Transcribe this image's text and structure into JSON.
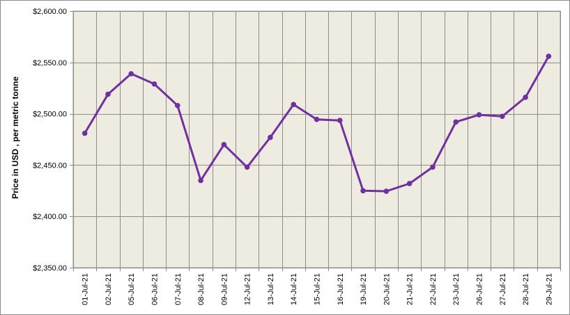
{
  "chart_data": {
    "type": "line",
    "title": "",
    "xlabel": "",
    "ylabel": "Price in USD , per metric tonne",
    "ylim": [
      2350,
      2600
    ],
    "y_ticks": [
      "$2,350.00",
      "$2,400.00",
      "$2,450.00",
      "$2,500.00",
      "$2,550.00",
      "$2,600.00"
    ],
    "y_tick_values": [
      2350,
      2400,
      2450,
      2500,
      2550,
      2600
    ],
    "grid": true,
    "legend": "none",
    "categories": [
      "01-Jul-21",
      "02-Jul-21",
      "05-Jul-21",
      "06-Jul-21",
      "07-Jul-21",
      "08-Jul-21",
      "09-Jul-21",
      "12-Jul-21",
      "13-Jul-21",
      "14-Jul-21",
      "15-Jul-21",
      "16-Jul-21",
      "19-Jul-21",
      "20-Jul-21",
      "21-Jul-21",
      "22-Jul-21",
      "23-Jul-21",
      "26-Jul-21",
      "27-Jul-21",
      "28-Jul-21",
      "29-Jul-21"
    ],
    "series": [
      {
        "values": [
          2481,
          2519,
          2539,
          2529,
          2508,
          2435,
          2470,
          2448,
          2477,
          2509,
          2494.5,
          2493.5,
          2425,
          2424.5,
          2432,
          2448,
          2492,
          2499,
          2497.5,
          2516,
          2556
        ]
      }
    ],
    "colors": {
      "line": "#7030a0",
      "plot_bg": "#eeebe0",
      "grid": "#8c8c8c"
    }
  }
}
